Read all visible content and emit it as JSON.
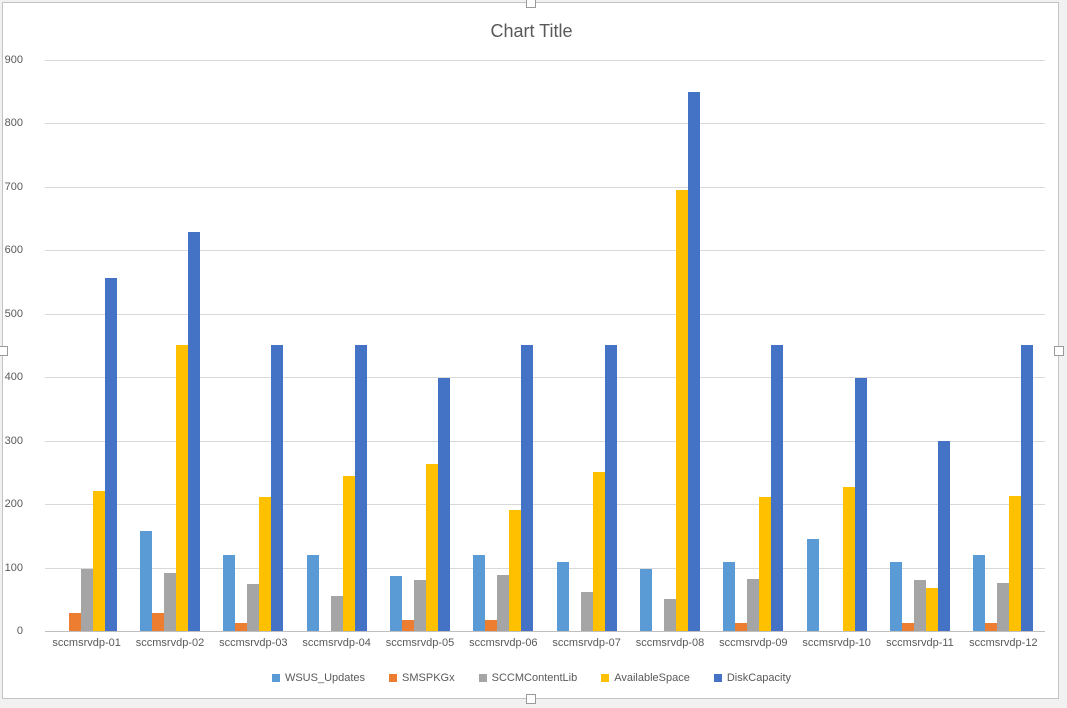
{
  "chart_chrome": {
    "background": "#ffffff",
    "sheet_background": "#f1f1f1",
    "gridline_color": "#d9d9d9",
    "axis_line_color": "#bfbfbf",
    "text_color": "#595959",
    "selection_state": "chart-selected-with-handles"
  },
  "chart_data": {
    "type": "bar",
    "title": "Chart Title",
    "categories": [
      "sccmsrvdp-01",
      "sccmsrvdp-02",
      "sccmsrvdp-03",
      "sccmsrvdp-04",
      "sccmsrvdp-05",
      "sccmsrvdp-06",
      "sccmsrvdp-07",
      "sccmsrvdp-08",
      "sccmsrvdp-09",
      "sccmsrvdp-10",
      "sccmsrvdp-11",
      "sccmsrvdp-12"
    ],
    "series": [
      {
        "name": "WSUS_Updates",
        "color": "#5B9BD5",
        "values": [
          0,
          158,
          120,
          120,
          87,
          120,
          108,
          98,
          108,
          145,
          109,
          120
        ]
      },
      {
        "name": "SMSPKGx",
        "color": "#ED7D31",
        "values": [
          28,
          28,
          13,
          0,
          18,
          18,
          0,
          0,
          13,
          0,
          13,
          13
        ]
      },
      {
        "name": "SCCMContentLib",
        "color": "#A5A5A5",
        "values": [
          97,
          91,
          74,
          55,
          81,
          88,
          62,
          50,
          82,
          0,
          80,
          75
        ]
      },
      {
        "name": "AvailableSpace",
        "color": "#FFC000",
        "values": [
          220,
          450,
          211,
          245,
          264,
          190,
          250,
          695,
          211,
          227,
          68,
          212
        ]
      },
      {
        "name": "DiskCapacity",
        "color": "#4472C4",
        "values": [
          557,
          629,
          450,
          450,
          399,
          450,
          450,
          849,
          450,
          399,
          300,
          450
        ]
      }
    ],
    "xlabel": "",
    "ylabel": "",
    "ylim": [
      0,
      900
    ],
    "yticks": [
      0,
      100,
      200,
      300,
      400,
      500,
      600,
      700,
      800,
      900
    ],
    "grid": true,
    "legend_position": "bottom"
  }
}
